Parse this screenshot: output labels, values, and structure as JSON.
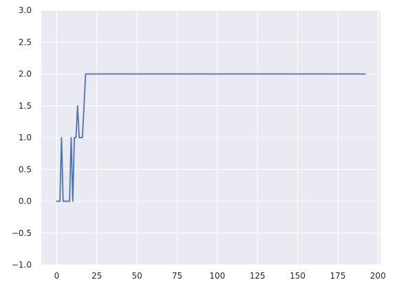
{
  "chart_data": {
    "type": "line",
    "title": "",
    "xlabel": "",
    "ylabel": "",
    "xlim": [
      -9.6,
      201.6
    ],
    "ylim": [
      -1.0,
      3.0
    ],
    "x_ticks": [
      0,
      25,
      50,
      75,
      100,
      125,
      150,
      175,
      200
    ],
    "x_tick_labels": [
      "0",
      "25",
      "50",
      "75",
      "100",
      "125",
      "150",
      "175",
      "200"
    ],
    "y_ticks": [
      -1.0,
      -0.5,
      0.0,
      0.5,
      1.0,
      1.5,
      2.0,
      2.5,
      3.0
    ],
    "y_tick_labels": [
      "−1.0",
      "−0.5",
      "0.0",
      "0.5",
      "1.0",
      "1.5",
      "2.0",
      "2.5",
      "3.0"
    ],
    "grid": true,
    "colors": {
      "background": "#EAEAF2",
      "grid": "#FFFFFF",
      "line": "#4C72B0"
    },
    "series": [
      {
        "x": [
          0,
          1,
          2,
          3,
          4,
          5,
          6,
          7,
          8,
          9,
          10,
          11,
          12,
          13,
          14,
          15,
          16,
          17,
          18,
          192
        ],
        "values": [
          0,
          0,
          0,
          1,
          0,
          0,
          0,
          0,
          0,
          1,
          0,
          1,
          1,
          1.5,
          1,
          1,
          1,
          1.5,
          2,
          2
        ]
      }
    ]
  }
}
